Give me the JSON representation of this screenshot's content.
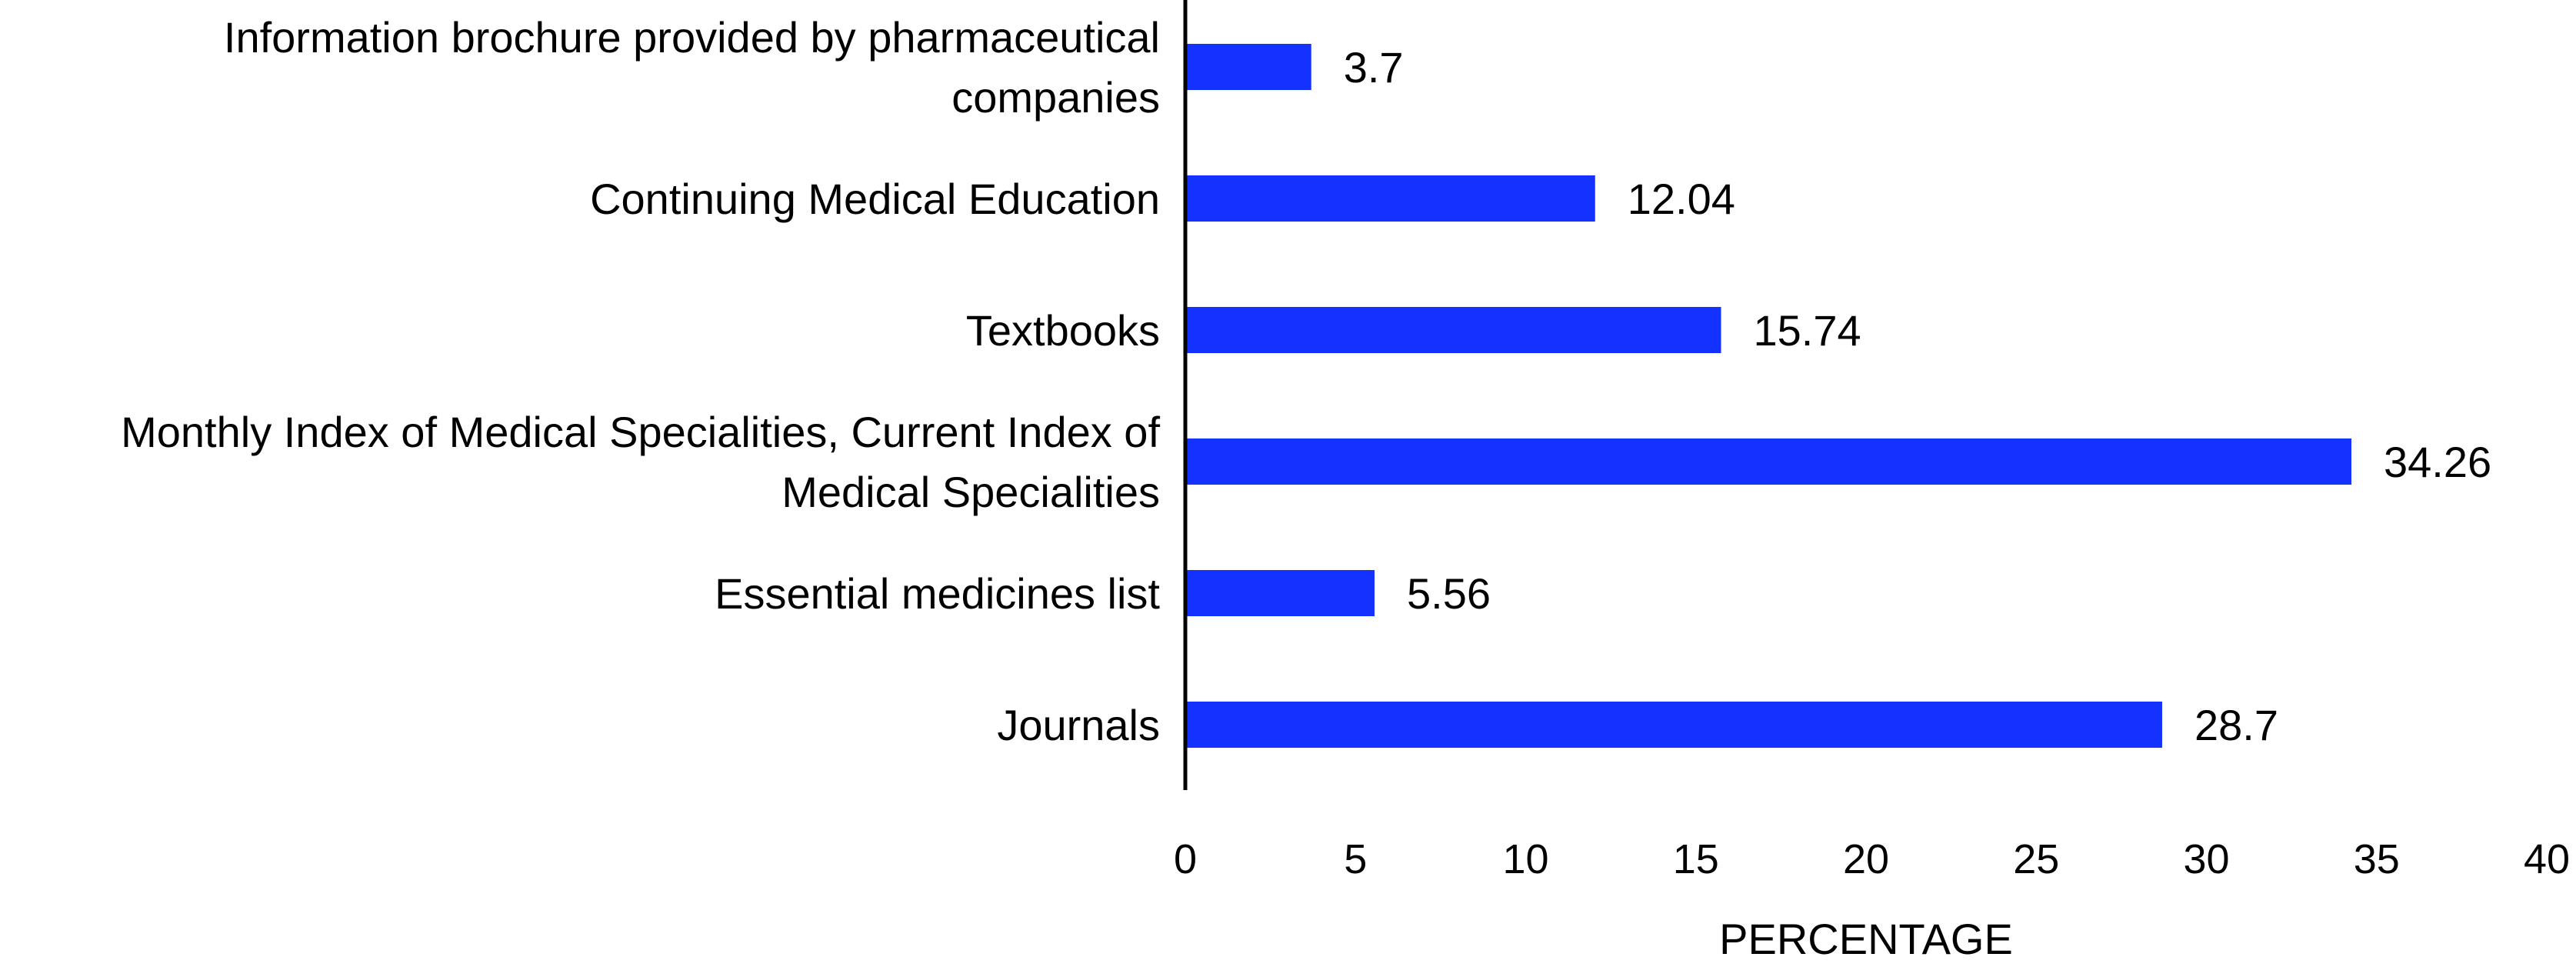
{
  "chart_data": {
    "type": "bar",
    "orientation": "horizontal",
    "title": "",
    "xlabel": "PERCENTAGE",
    "ylabel": "",
    "xlim": [
      0,
      40
    ],
    "x_ticks": [
      "0",
      "5",
      "10",
      "15",
      "20",
      "25",
      "30",
      "35",
      "40"
    ],
    "grid": false,
    "bar_color": "#1432FF",
    "categories": [
      {
        "label_lines": [
          "Information brochure provided by pharmaceutical",
          "companies"
        ],
        "value": 3.7,
        "value_label": "3.7"
      },
      {
        "label_lines": [
          "Continuing Medical Education"
        ],
        "value": 12.04,
        "value_label": "12.04"
      },
      {
        "label_lines": [
          "Textbooks"
        ],
        "value": 15.74,
        "value_label": "15.74"
      },
      {
        "label_lines": [
          "Monthly Index of Medical Specialities, Current Index of",
          "Medical Specialities"
        ],
        "value": 34.26,
        "value_label": "34.26"
      },
      {
        "label_lines": [
          "Essential medicines list"
        ],
        "value": 5.56,
        "value_label": "5.56"
      },
      {
        "label_lines": [
          "Journals"
        ],
        "value": 28.7,
        "value_label": "28.7"
      }
    ]
  }
}
